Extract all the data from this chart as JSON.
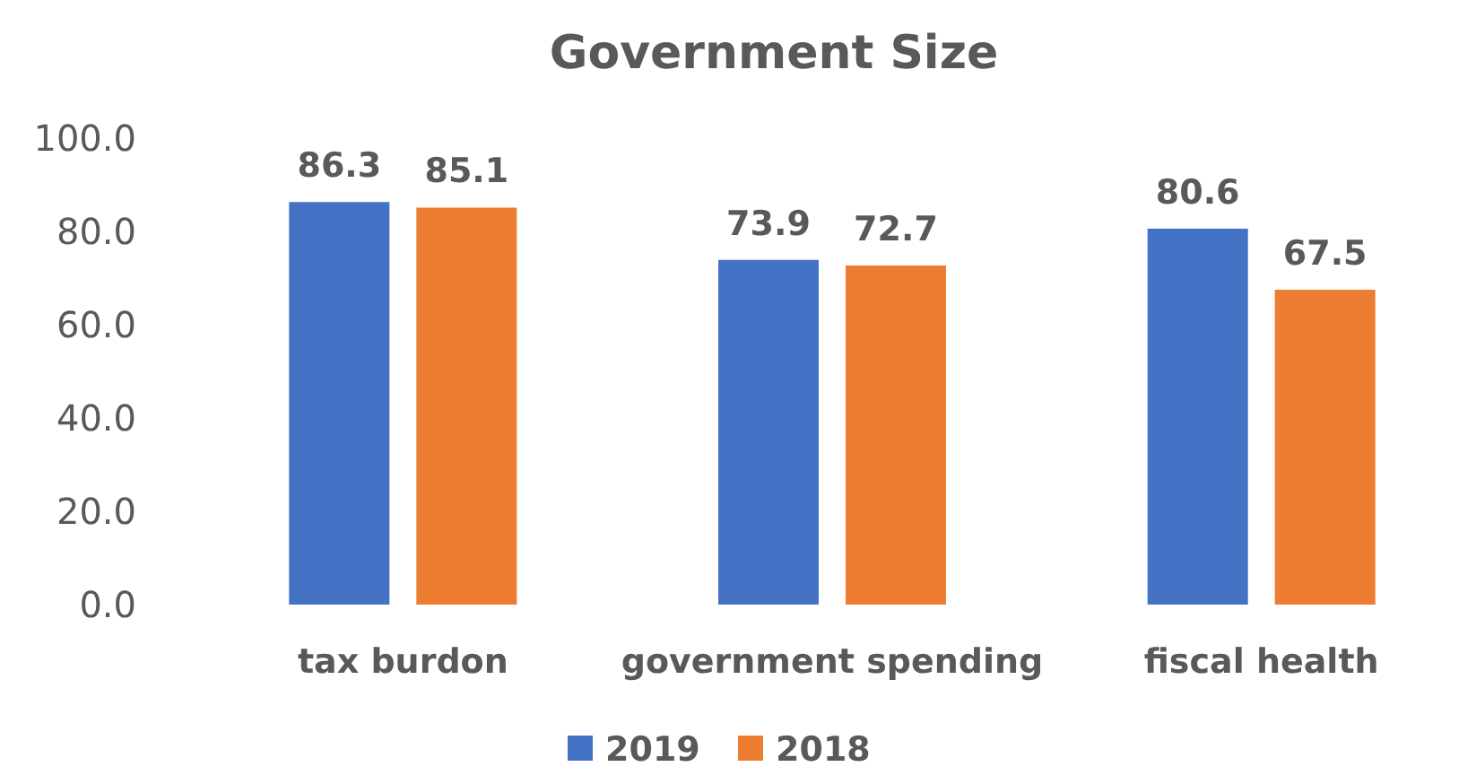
{
  "chart_data": {
    "type": "bar",
    "title": "Government Size",
    "categories": [
      "tax burdon",
      "government spending",
      "fiscal health"
    ],
    "series": [
      {
        "name": "2019",
        "color": "#4472c4",
        "values": [
          86.3,
          73.9,
          80.6
        ]
      },
      {
        "name": "2018",
        "color": "#ed7d31",
        "values": [
          85.1,
          72.7,
          67.5
        ]
      }
    ],
    "ylim": [
      0,
      100
    ],
    "yticks": [
      {
        "value": 0,
        "label": "0.0"
      },
      {
        "value": 20,
        "label": "20.0"
      },
      {
        "value": 40,
        "label": "40.0"
      },
      {
        "value": 60,
        "label": "60.0"
      },
      {
        "value": 80,
        "label": "80.0"
      },
      {
        "value": 100,
        "label": "100.0"
      }
    ],
    "grid": false,
    "data_labels": true,
    "legend": "bottom"
  }
}
